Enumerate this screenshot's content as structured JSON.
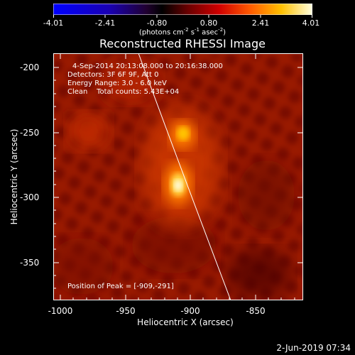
{
  "colorbar": {
    "ticks": [
      "-4.01",
      "-2.41",
      "-0.80",
      "0.80",
      "2.41",
      "4.01"
    ],
    "units_pre": "(photons cm",
    "units_exp1": "-2",
    "units_mid1": " s",
    "units_exp2": "-1",
    "units_mid2": " asec",
    "units_exp3": "-2",
    "units_post": ")"
  },
  "title": "Reconstructed RHESSI Image",
  "info": {
    "time_range": "4-Sep-2014 20:13:08.000 to 20:16:38.000",
    "detectors": "Detectors: 3F 6F 9F, Att 0",
    "energy": "Energy Range: 3.0 - 6.0 keV",
    "algorithm": "Clean    Total counts: 5.43E+04",
    "peak": "Position of Peak = [-909,-291]"
  },
  "axes": {
    "xlabel": "Heliocentric X (arcsec)",
    "ylabel": "Heliocentric Y (arcsec)",
    "xticks": [
      "-1000",
      "-950",
      "-900",
      "-850"
    ],
    "yticks": [
      "-200",
      "-250",
      "-300",
      "-350"
    ]
  },
  "footer": "2-Jun-2019 07:34"
}
